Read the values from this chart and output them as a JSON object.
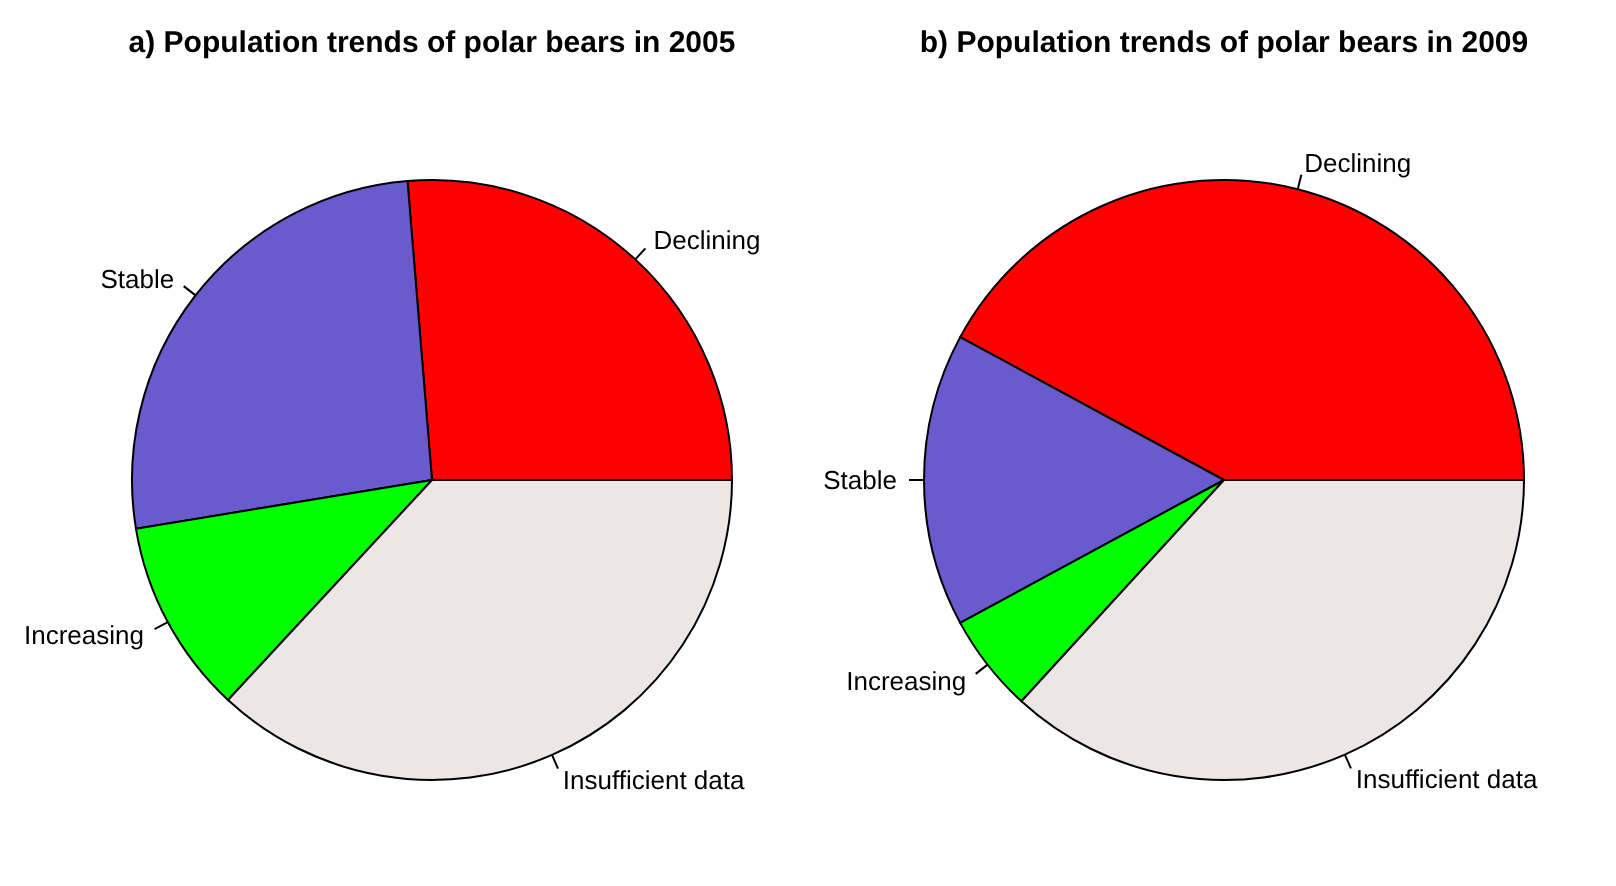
{
  "chart_data": [
    {
      "type": "pie",
      "title": "a) Population trends of polar bears in 2005",
      "categories": [
        "Declining",
        "Stable",
        "Increasing",
        "Insufficient data"
      ],
      "values": [
        26.3,
        26.3,
        10.5,
        36.9
      ],
      "colors": [
        "#ff0000",
        "#6a5acd",
        "#00ff00",
        "#ece6e6"
      ]
    },
    {
      "type": "pie",
      "title": "b) Population trends of polar bears in 2009",
      "categories": [
        "Declining",
        "Stable",
        "Increasing",
        "Insufficient data"
      ],
      "values": [
        42.1,
        15.8,
        5.3,
        36.8
      ],
      "colors": [
        "#ff0000",
        "#6a5acd",
        "#00ff00",
        "#ece6e6"
      ]
    }
  ]
}
